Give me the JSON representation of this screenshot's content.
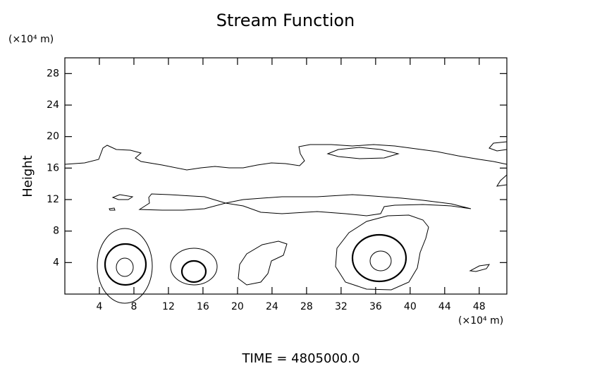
{
  "chart_data": {
    "type": "contour",
    "title": "Stream Function",
    "y_unit": "(×10⁴ m)",
    "x_unit": "(×10⁴ m)",
    "ylabel": "Height",
    "footer": "TIME = 4805000.0",
    "xlim": [
      0,
      51.2
    ],
    "ylim": [
      0,
      30
    ],
    "xticks": [
      4,
      8,
      12,
      16,
      20,
      24,
      28,
      32,
      36,
      40,
      44,
      48
    ],
    "yticks": [
      4,
      8,
      12,
      16,
      20,
      24,
      28
    ],
    "color": "#000000"
  }
}
